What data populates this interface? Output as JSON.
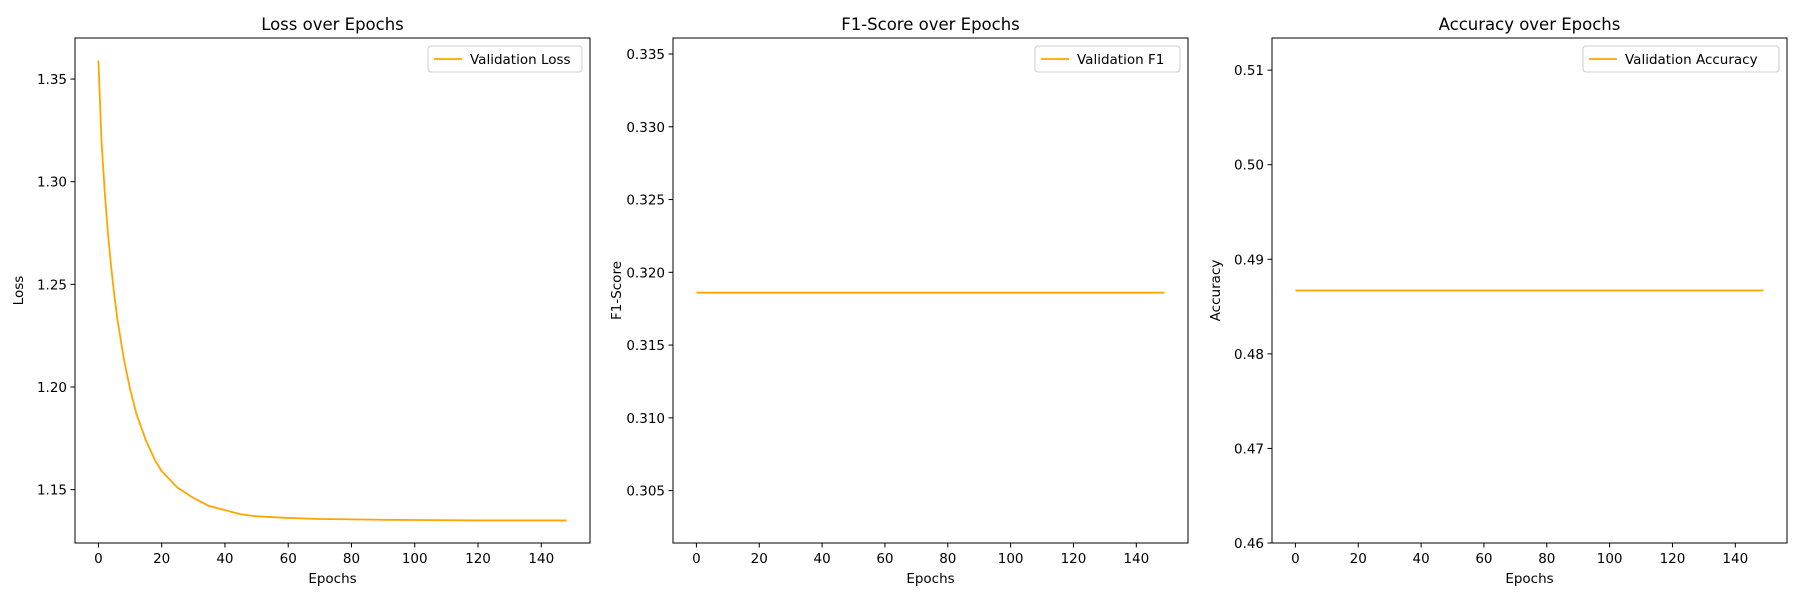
{
  "chart_data": [
    {
      "type": "line",
      "title": "Loss over Epochs",
      "xlabel": "Epochs",
      "ylabel": "Loss",
      "xlim": [
        -7.4,
        155.4
      ],
      "ylim": [
        1.124,
        1.37
      ],
      "xticks": [
        0,
        20,
        40,
        60,
        80,
        100,
        120,
        140
      ],
      "xtick_labels": [
        "0",
        "20",
        "40",
        "60",
        "80",
        "100",
        "120",
        "140"
      ],
      "yticks": [
        1.15,
        1.2,
        1.25,
        1.3,
        1.35
      ],
      "ytick_labels": [
        "1.15",
        "1.20",
        "1.25",
        "1.30",
        "1.35"
      ],
      "legend": "upper right",
      "grid": false,
      "series": [
        {
          "name": "Validation Loss",
          "color": "#ffa500",
          "x": [
            0,
            1,
            2,
            3,
            4,
            5,
            6,
            8,
            10,
            12,
            15,
            18,
            20,
            25,
            30,
            35,
            40,
            45,
            50,
            60,
            70,
            80,
            90,
            100,
            110,
            120,
            130,
            140,
            148
          ],
          "y": [
            1.359,
            1.319,
            1.295,
            1.275,
            1.259,
            1.245,
            1.233,
            1.214,
            1.199,
            1.187,
            1.174,
            1.164,
            1.159,
            1.151,
            1.146,
            1.142,
            1.14,
            1.138,
            1.137,
            1.1362,
            1.1357,
            1.1355,
            1.1353,
            1.1352,
            1.1351,
            1.135,
            1.135,
            1.135,
            1.135
          ]
        }
      ]
    },
    {
      "type": "line",
      "title": "F1-Score over Epochs",
      "xlabel": "Epochs",
      "ylabel": "F1-Score",
      "xlim": [
        -7.45,
        156.45
      ],
      "ylim": [
        0.3014,
        0.3361
      ],
      "xticks": [
        0,
        20,
        40,
        60,
        80,
        100,
        120,
        140
      ],
      "xtick_labels": [
        "0",
        "20",
        "40",
        "60",
        "80",
        "100",
        "120",
        "140"
      ],
      "yticks": [
        0.305,
        0.31,
        0.315,
        0.32,
        0.325,
        0.33,
        0.335
      ],
      "ytick_labels": [
        "0.305",
        "0.310",
        "0.315",
        "0.320",
        "0.325",
        "0.330",
        "0.335"
      ],
      "legend": "upper right",
      "grid": false,
      "series": [
        {
          "name": "Validation F1",
          "color": "#ffa500",
          "x": [
            0,
            149
          ],
          "y": [
            0.3186,
            0.3186
          ]
        }
      ]
    },
    {
      "type": "line",
      "title": "Accuracy over Epochs",
      "xlabel": "Epochs",
      "ylabel": "Accuracy",
      "xlim": [
        -7.45,
        156.45
      ],
      "ylim": [
        0.46,
        0.5134
      ],
      "xticks": [
        0,
        20,
        40,
        60,
        80,
        100,
        120,
        140
      ],
      "xtick_labels": [
        "0",
        "20",
        "40",
        "60",
        "80",
        "100",
        "120",
        "140"
      ],
      "yticks": [
        0.46,
        0.47,
        0.48,
        0.49,
        0.5,
        0.51
      ],
      "ytick_labels": [
        "0.46",
        "0.47",
        "0.48",
        "0.49",
        "0.50",
        "0.51"
      ],
      "legend": "upper right",
      "grid": false,
      "series": [
        {
          "name": "Validation Accuracy",
          "color": "#ffa500",
          "x": [
            0,
            149
          ],
          "y": [
            0.4867,
            0.4867
          ]
        }
      ]
    }
  ]
}
